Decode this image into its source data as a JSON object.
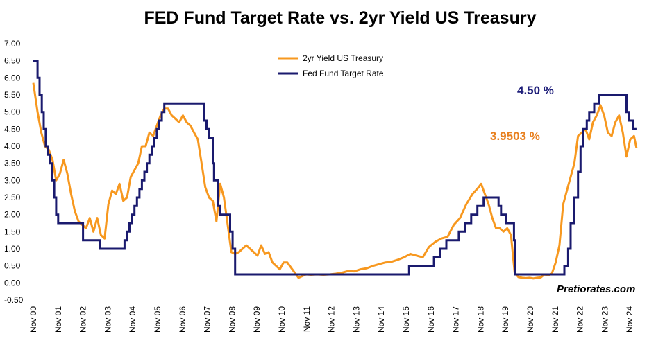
{
  "title": "FED Fund Target Rate vs. 2yr Yield US Treasury",
  "watermark": "Pretiorates.com",
  "colors": {
    "treasury": "#f7981f",
    "fed": "#1a1a6e",
    "fed_annotation": "#1f1f7a",
    "treasury_annotation": "#e8801f"
  },
  "annotations": {
    "fed_last": "4.50 %",
    "treasury_last": "3.9503 %"
  },
  "chart_data": {
    "type": "line",
    "title": "FED Fund Target Rate vs. 2yr Yield US Treasury",
    "xlabel": "",
    "ylabel": "",
    "ylim": [
      -0.5,
      7.0
    ],
    "xlim": [
      2000.83,
      2025.1
    ],
    "yticks": [
      "7.00",
      "6.50",
      "6.00",
      "5.50",
      "5.00",
      "4.50",
      "4.00",
      "3.50",
      "3.00",
      "2.50",
      "2.00",
      "1.50",
      "1.00",
      "0.50",
      "0.00",
      "-0.50"
    ],
    "xticks": [
      "Nov 00",
      "Nov 01",
      "Nov 02",
      "Nov 03",
      "Nov 04",
      "Nov 05",
      "Nov 06",
      "Nov 07",
      "Nov 08",
      "Nov 09",
      "Nov 10",
      "Nov 11",
      "Nov 12",
      "Nov 13",
      "Nov 14",
      "Nov 15",
      "Nov 16",
      "Nov 17",
      "Nov 18",
      "Nov 19",
      "Nov 20",
      "Nov 21",
      "Nov 22",
      "Nov 23",
      "Nov 24"
    ],
    "legend_position": "top-center",
    "grid": false,
    "series": [
      {
        "name": "2yr Yield US Treasury",
        "color": "#f7981f",
        "x": [
          2000.83,
          2001.0,
          2001.15,
          2001.3,
          2001.45,
          2001.6,
          2001.75,
          2001.9,
          2002.05,
          2002.2,
          2002.35,
          2002.5,
          2002.65,
          2002.8,
          2002.95,
          2003.1,
          2003.25,
          2003.4,
          2003.55,
          2003.7,
          2003.85,
          2004.0,
          2004.15,
          2004.3,
          2004.45,
          2004.6,
          2004.75,
          2004.9,
          2005.05,
          2005.2,
          2005.35,
          2005.5,
          2005.65,
          2005.8,
          2005.95,
          2006.1,
          2006.25,
          2006.4,
          2006.55,
          2006.7,
          2006.85,
          2007.0,
          2007.15,
          2007.3,
          2007.45,
          2007.6,
          2007.75,
          2007.9,
          2008.05,
          2008.2,
          2008.35,
          2008.5,
          2008.65,
          2008.8,
          2008.95,
          2009.1,
          2009.25,
          2009.4,
          2009.55,
          2009.7,
          2009.85,
          2010.0,
          2010.15,
          2010.3,
          2010.45,
          2010.6,
          2010.75,
          2010.9,
          2011.05,
          2011.2,
          2011.35,
          2011.5,
          2011.65,
          2011.8,
          2012.0,
          2012.25,
          2012.5,
          2012.75,
          2013.0,
          2013.25,
          2013.5,
          2013.75,
          2014.0,
          2014.25,
          2014.5,
          2014.75,
          2015.0,
          2015.25,
          2015.5,
          2015.75,
          2016.0,
          2016.25,
          2016.5,
          2016.75,
          2017.0,
          2017.25,
          2017.5,
          2017.75,
          2018.0,
          2018.25,
          2018.5,
          2018.75,
          2018.85,
          2019.0,
          2019.15,
          2019.3,
          2019.45,
          2019.6,
          2019.75,
          2019.9,
          2020.05,
          2020.2,
          2020.35,
          2020.5,
          2020.65,
          2020.8,
          2020.95,
          2021.1,
          2021.25,
          2021.4,
          2021.55,
          2021.7,
          2021.85,
          2022.0,
          2022.15,
          2022.3,
          2022.45,
          2022.6,
          2022.75,
          2022.9,
          2023.05,
          2023.2,
          2023.35,
          2023.5,
          2023.65,
          2023.8,
          2023.95,
          2024.1,
          2024.25,
          2024.4,
          2024.55,
          2024.7,
          2024.85,
          2025.0,
          2025.1
        ],
        "y": [
          5.85,
          5.0,
          4.4,
          4.0,
          3.9,
          3.6,
          3.0,
          3.2,
          3.6,
          3.2,
          2.6,
          2.1,
          1.8,
          1.7,
          1.6,
          1.9,
          1.5,
          1.9,
          1.4,
          1.3,
          2.3,
          2.7,
          2.6,
          2.9,
          2.4,
          2.5,
          3.1,
          3.3,
          3.5,
          4.0,
          4.0,
          4.4,
          4.3,
          4.6,
          4.9,
          5.1,
          5.1,
          4.9,
          4.8,
          4.7,
          4.9,
          4.7,
          4.6,
          4.4,
          4.2,
          3.5,
          2.8,
          2.5,
          2.4,
          1.8,
          2.9,
          2.5,
          1.7,
          0.9,
          0.85,
          0.9,
          1.0,
          1.1,
          1.0,
          0.9,
          0.8,
          1.1,
          0.85,
          0.9,
          0.6,
          0.5,
          0.4,
          0.6,
          0.6,
          0.45,
          0.3,
          0.15,
          0.2,
          0.25,
          0.24,
          0.25,
          0.24,
          0.25,
          0.27,
          0.3,
          0.35,
          0.34,
          0.4,
          0.43,
          0.5,
          0.55,
          0.6,
          0.62,
          0.68,
          0.75,
          0.85,
          0.8,
          0.75,
          1.05,
          1.2,
          1.3,
          1.35,
          1.7,
          1.9,
          2.3,
          2.6,
          2.8,
          2.9,
          2.6,
          2.3,
          1.9,
          1.6,
          1.6,
          1.5,
          1.6,
          1.4,
          0.3,
          0.17,
          0.15,
          0.14,
          0.15,
          0.13,
          0.15,
          0.16,
          0.25,
          0.22,
          0.28,
          0.6,
          1.1,
          2.3,
          2.7,
          3.1,
          3.5,
          4.3,
          4.4,
          4.5,
          4.2,
          4.7,
          4.9,
          5.2,
          4.9,
          4.4,
          4.3,
          4.7,
          4.9,
          4.4,
          3.7,
          4.2,
          4.3,
          3.95
        ]
      },
      {
        "name": "Fed Fund Target Rate",
        "color": "#1a1a6e",
        "x": [
          2000.83,
          2001.0,
          2001.08,
          2001.17,
          2001.25,
          2001.33,
          2001.42,
          2001.5,
          2001.58,
          2001.67,
          2001.75,
          2001.83,
          2002.83,
          2003.5,
          2004.5,
          2004.6,
          2004.7,
          2004.8,
          2004.9,
          2005.0,
          2005.1,
          2005.2,
          2005.3,
          2005.4,
          2005.5,
          2005.6,
          2005.7,
          2005.8,
          2005.9,
          2006.0,
          2006.1,
          2006.2,
          2006.3,
          2006.45,
          2007.7,
          2007.8,
          2007.9,
          2008.05,
          2008.1,
          2008.25,
          2008.35,
          2008.75,
          2008.85,
          2008.95,
          2015.95,
          2016.95,
          2017.2,
          2017.45,
          2017.95,
          2018.2,
          2018.45,
          2018.7,
          2018.95,
          2019.55,
          2019.65,
          2019.85,
          2020.17,
          2020.22,
          2022.2,
          2022.35,
          2022.45,
          2022.6,
          2022.75,
          2022.85,
          2022.95,
          2023.1,
          2023.2,
          2023.4,
          2023.6,
          2024.7,
          2024.8,
          2024.95,
          2025.1
        ],
        "y": [
          6.5,
          6.0,
          5.5,
          5.0,
          4.5,
          4.0,
          3.75,
          3.5,
          3.0,
          2.5,
          2.0,
          1.75,
          1.25,
          1.0,
          1.25,
          1.5,
          1.75,
          2.0,
          2.25,
          2.5,
          2.75,
          3.0,
          3.25,
          3.5,
          3.75,
          4.0,
          4.25,
          4.5,
          4.75,
          5.0,
          5.25,
          5.25,
          5.25,
          5.25,
          4.75,
          4.5,
          4.25,
          3.5,
          3.0,
          2.25,
          2.0,
          1.5,
          1.0,
          0.25,
          0.5,
          0.75,
          1.0,
          1.25,
          1.5,
          1.75,
          2.0,
          2.25,
          2.5,
          2.25,
          2.0,
          1.75,
          1.25,
          0.25,
          0.5,
          1.0,
          1.75,
          2.5,
          3.25,
          4.0,
          4.5,
          4.75,
          5.0,
          5.25,
          5.5,
          5.0,
          4.75,
          4.5,
          4.5
        ]
      }
    ]
  }
}
